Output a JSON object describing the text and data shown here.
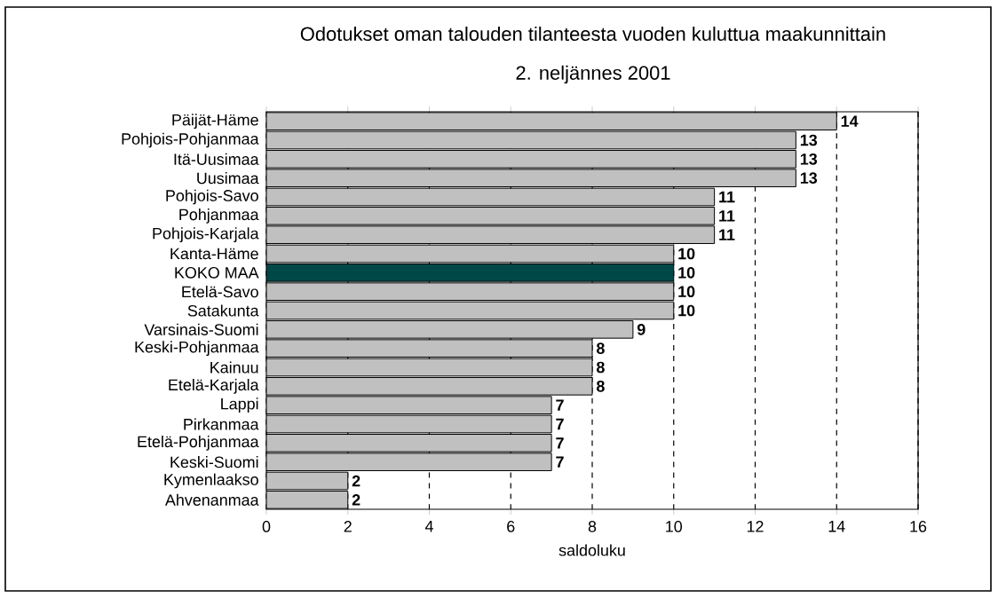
{
  "chart_data": {
    "type": "bar",
    "orientation": "horizontal",
    "title": "Odotukset oman talouden tilanteesta vuoden kuluttua maakunnittain",
    "subtitle": "2. neljännes 2001",
    "xlabel": "saldoluku",
    "categories": [
      "Päijät-Häme",
      "Pohjois-Pohjanmaa",
      "Itä-Uusimaa",
      "Uusimaa",
      "Pohjois-Savo",
      "Pohjanmaa",
      "Pohjois-Karjala",
      "Kanta-Häme",
      "KOKO MAA",
      "Etelä-Savo",
      "Satakunta",
      "Varsinais-Suomi",
      "Keski-Pohjanmaa",
      "Kainuu",
      "Etelä-Karjala",
      "Lappi",
      "Pirkanmaa",
      "Etelä-Pohjanmaa",
      "Keski-Suomi",
      "Kymenlaakso",
      "Ahvenanmaa"
    ],
    "values": [
      14,
      13,
      13,
      13,
      11,
      11,
      11,
      10,
      10,
      10,
      10,
      9,
      8,
      8,
      8,
      7,
      7,
      7,
      7,
      2,
      2
    ],
    "colors": [
      "#c0c0c0",
      "#c0c0c0",
      "#c0c0c0",
      "#c0c0c0",
      "#c0c0c0",
      "#c0c0c0",
      "#c0c0c0",
      "#c0c0c0",
      "#004848",
      "#c0c0c0",
      "#c0c0c0",
      "#c0c0c0",
      "#c0c0c0",
      "#c0c0c0",
      "#c0c0c0",
      "#c0c0c0",
      "#c0c0c0",
      "#c0c0c0",
      "#c0c0c0",
      "#c0c0c0",
      "#c0c0c0"
    ],
    "xlim": [
      0,
      16
    ],
    "xticks": [
      0,
      2,
      4,
      6,
      8,
      10,
      12,
      14,
      16
    ],
    "grid": "x",
    "data_labels": true
  }
}
